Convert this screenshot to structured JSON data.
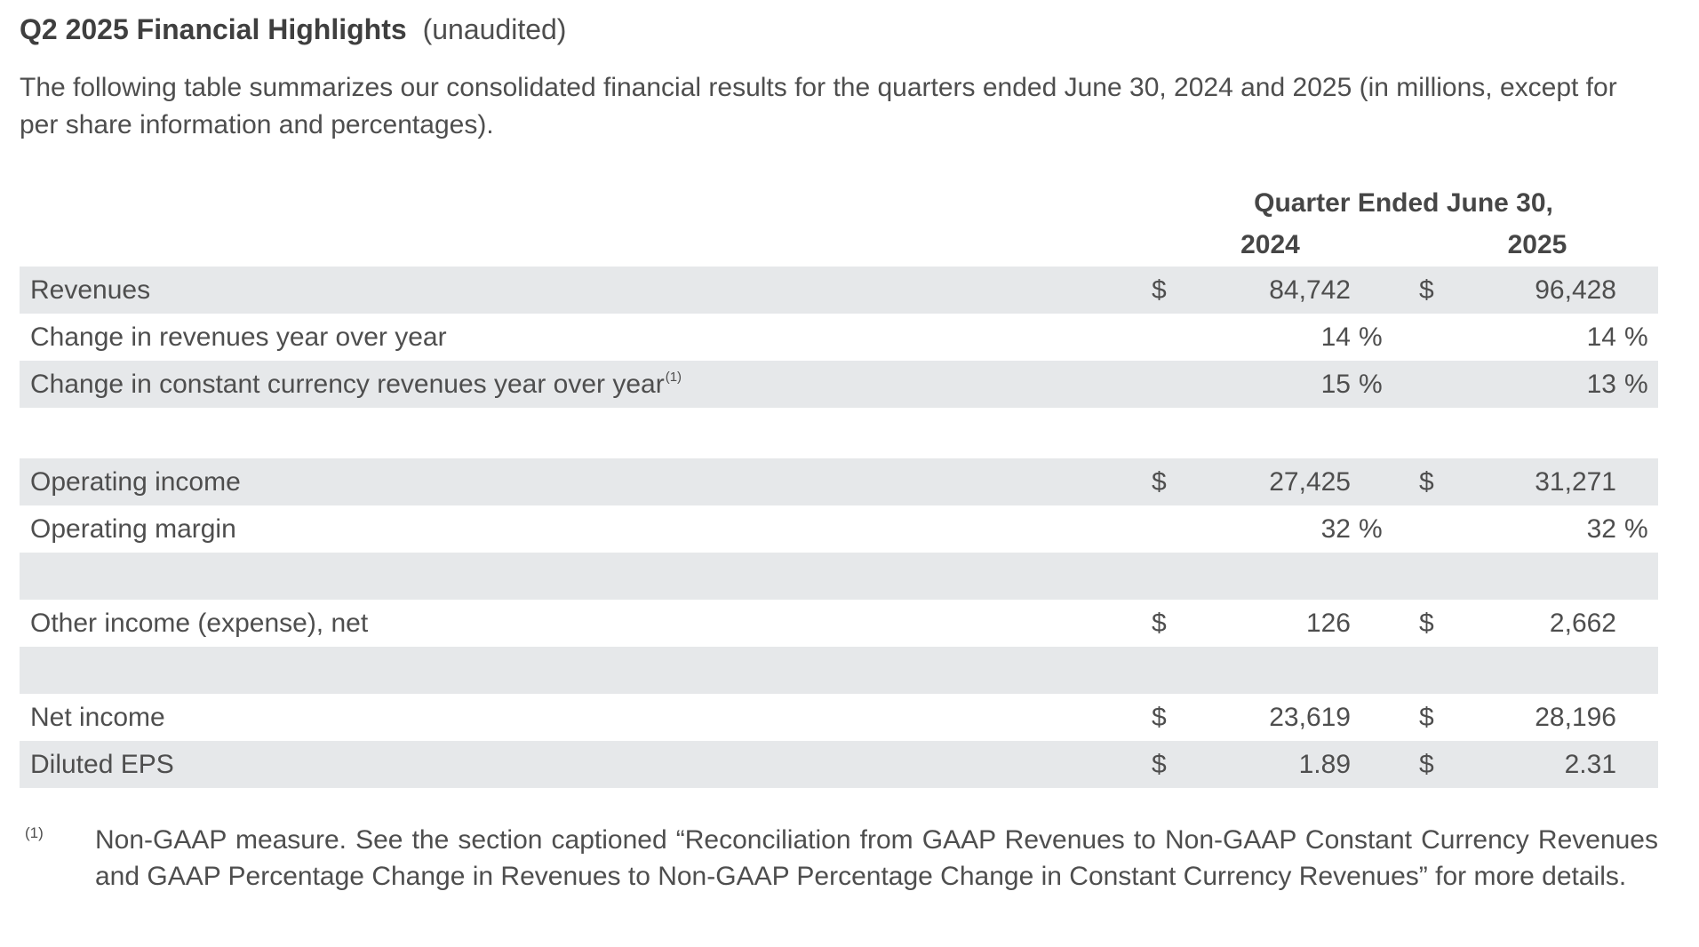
{
  "header": {
    "title": "Q2 2025 Financial Highlights",
    "suffix": "(unaudited)"
  },
  "intro": {
    "text": "The following table summarizes our consolidated financial results for the quarters ended June 30, 2024 and 2025 (in millions, except for per share information and percentages)."
  },
  "table": {
    "group_header": "Quarter Ended June 30,",
    "col_2024": "2024",
    "col_2025": "2025",
    "rows": [
      {
        "label": "Revenues",
        "sup": "",
        "shaded": true,
        "spacer": false,
        "tall": false,
        "c1": {
          "cur": "$",
          "val": "84,742",
          "pct": ""
        },
        "c2": {
          "cur": "$",
          "val": "96,428",
          "pct": ""
        }
      },
      {
        "label": "Change in revenues year over year",
        "sup": "",
        "shaded": false,
        "spacer": false,
        "tall": false,
        "c1": {
          "cur": "",
          "val": "14",
          "pct": "%"
        },
        "c2": {
          "cur": "",
          "val": "14",
          "pct": "%"
        }
      },
      {
        "label": "Change in constant currency revenues year over year",
        "sup": "(1)",
        "shaded": true,
        "spacer": false,
        "tall": false,
        "c1": {
          "cur": "",
          "val": "15",
          "pct": "%"
        },
        "c2": {
          "cur": "",
          "val": "13",
          "pct": "%"
        }
      },
      {
        "label": "",
        "sup": "",
        "shaded": false,
        "spacer": true,
        "tall": true,
        "c1": {
          "cur": "",
          "val": "",
          "pct": ""
        },
        "c2": {
          "cur": "",
          "val": "",
          "pct": ""
        }
      },
      {
        "label": "Operating income",
        "sup": "",
        "shaded": true,
        "spacer": false,
        "tall": false,
        "c1": {
          "cur": "$",
          "val": "27,425",
          "pct": ""
        },
        "c2": {
          "cur": "$",
          "val": "31,271",
          "pct": ""
        }
      },
      {
        "label": "Operating margin",
        "sup": "",
        "shaded": false,
        "spacer": false,
        "tall": false,
        "c1": {
          "cur": "",
          "val": "32",
          "pct": "%"
        },
        "c2": {
          "cur": "",
          "val": "32",
          "pct": "%"
        }
      },
      {
        "label": "",
        "sup": "",
        "shaded": true,
        "spacer": true,
        "tall": false,
        "c1": {
          "cur": "",
          "val": "",
          "pct": ""
        },
        "c2": {
          "cur": "",
          "val": "",
          "pct": ""
        }
      },
      {
        "label": "Other income (expense), net",
        "sup": "",
        "shaded": false,
        "spacer": false,
        "tall": false,
        "c1": {
          "cur": "$",
          "val": "126",
          "pct": ""
        },
        "c2": {
          "cur": "$",
          "val": "2,662",
          "pct": ""
        }
      },
      {
        "label": "",
        "sup": "",
        "shaded": true,
        "spacer": true,
        "tall": false,
        "c1": {
          "cur": "",
          "val": "",
          "pct": ""
        },
        "c2": {
          "cur": "",
          "val": "",
          "pct": ""
        }
      },
      {
        "label": "Net income",
        "sup": "",
        "shaded": false,
        "spacer": false,
        "tall": false,
        "c1": {
          "cur": "$",
          "val": "23,619",
          "pct": ""
        },
        "c2": {
          "cur": "$",
          "val": "28,196",
          "pct": ""
        }
      },
      {
        "label": "Diluted EPS",
        "sup": "",
        "shaded": true,
        "spacer": false,
        "tall": false,
        "c1": {
          "cur": "$",
          "val": "1.89",
          "pct": ""
        },
        "c2": {
          "cur": "$",
          "val": "2.31",
          "pct": ""
        }
      }
    ]
  },
  "footnote": {
    "marker": "(1)",
    "text": "Non-GAAP measure. See the section captioned “Reconciliation from GAAP Revenues to Non-GAAP Constant Currency Revenues and GAAP Percentage Change in Revenues to Non-GAAP Percentage Change in Constant Currency Revenues” for more details."
  },
  "colors": {
    "band": "#e6e8ea",
    "text": "#4e4e4e"
  }
}
